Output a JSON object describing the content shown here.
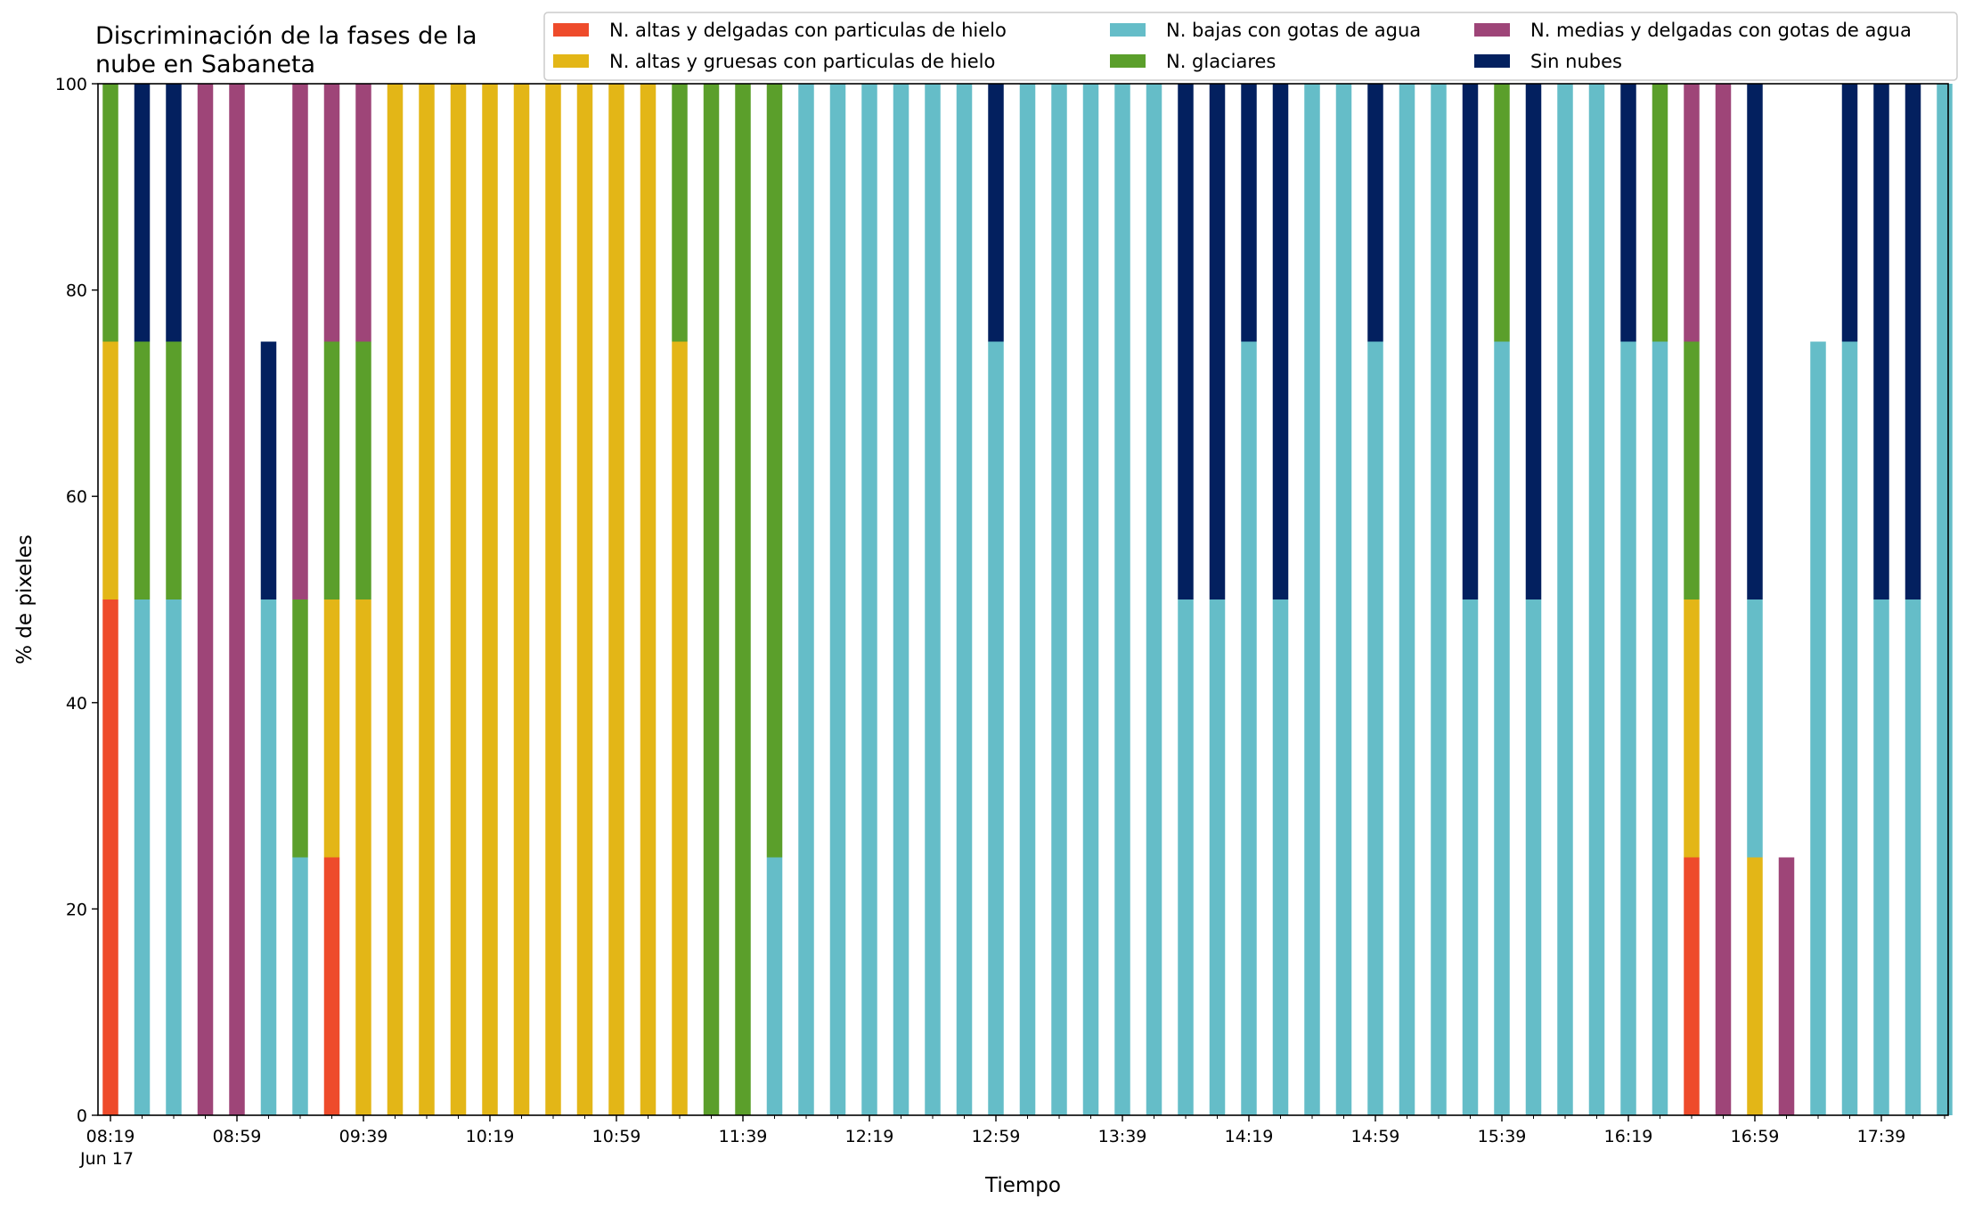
{
  "chart_data": {
    "type": "bar",
    "stacked": true,
    "title": "Discriminación de la fases de la nube en Sabaneta",
    "title_lines": [
      "Discriminación de la fases de la",
      "nube en Sabaneta"
    ],
    "xlabel": "Tiempo",
    "ylabel": "% de pixeles",
    "ylim": [
      0,
      100
    ],
    "yticks": [
      0,
      20,
      40,
      60,
      80,
      100
    ],
    "x_major_tick_labels": [
      "08:19",
      "08:59",
      "09:39",
      "10:19",
      "10:59",
      "11:39",
      "12:19",
      "12:59",
      "13:39",
      "14:19",
      "14:59",
      "15:39",
      "16:19",
      "16:59",
      "17:39"
    ],
    "x_sub_label": "Jun 17",
    "grid": false,
    "legend_position": "top-right",
    "legend_columns": 3,
    "series": [
      {
        "name": "N. altas y delgadas con particulas de hielo",
        "color": "#ee4b2b",
        "values": [
          50,
          0,
          0,
          0,
          0,
          0,
          0,
          25,
          0,
          0,
          0,
          0,
          0,
          0,
          0,
          0,
          0,
          0,
          0,
          0,
          0,
          0,
          0,
          0,
          0,
          0,
          0,
          0,
          0,
          0,
          0,
          0,
          0,
          0,
          0,
          0,
          0,
          0,
          0,
          0,
          0,
          0,
          0,
          0,
          0,
          0,
          0,
          0,
          0,
          0,
          25,
          0,
          0,
          0,
          0,
          0,
          0,
          0,
          0
        ]
      },
      {
        "name": "N. altas y gruesas con particulas de hielo",
        "color": "#e3b617",
        "values": [
          25,
          0,
          0,
          0,
          0,
          0,
          0,
          25,
          50,
          100,
          100,
          100,
          100,
          100,
          100,
          100,
          100,
          100,
          75,
          0,
          0,
          0,
          0,
          0,
          0,
          0,
          0,
          0,
          0,
          0,
          0,
          0,
          0,
          0,
          0,
          0,
          0,
          0,
          0,
          0,
          0,
          0,
          0,
          0,
          0,
          0,
          0,
          0,
          0,
          0,
          25,
          0,
          25,
          0,
          0,
          0,
          0,
          0,
          0
        ]
      },
      {
        "name": "N. bajas con gotas de agua",
        "color": "#65bdc8",
        "values": [
          0,
          50,
          50,
          0,
          0,
          50,
          25,
          0,
          0,
          0,
          0,
          0,
          0,
          0,
          0,
          0,
          0,
          0,
          0,
          0,
          0,
          25,
          100,
          100,
          100,
          100,
          100,
          100,
          75,
          100,
          100,
          100,
          100,
          100,
          50,
          50,
          75,
          50,
          100,
          100,
          75,
          100,
          100,
          50,
          75,
          50,
          100,
          100,
          75,
          75,
          0,
          0,
          25,
          0,
          75,
          75,
          50,
          50,
          100
        ]
      },
      {
        "name": "N. glaciares",
        "color": "#5b9f2b",
        "values": [
          25,
          25,
          25,
          0,
          0,
          0,
          25,
          25,
          25,
          0,
          0,
          0,
          0,
          0,
          0,
          0,
          0,
          0,
          25,
          100,
          100,
          75,
          0,
          0,
          0,
          0,
          0,
          0,
          0,
          0,
          0,
          0,
          0,
          0,
          0,
          0,
          0,
          0,
          0,
          0,
          0,
          0,
          0,
          0,
          25,
          0,
          0,
          0,
          0,
          25,
          25,
          0,
          0,
          0,
          0,
          0,
          0,
          0,
          0
        ]
      },
      {
        "name": "N. medias y delgadas con gotas de agua",
        "color": "#9e4578",
        "values": [
          0,
          0,
          0,
          100,
          100,
          0,
          50,
          25,
          25,
          0,
          0,
          0,
          0,
          0,
          0,
          0,
          0,
          0,
          0,
          0,
          0,
          0,
          0,
          0,
          0,
          0,
          0,
          0,
          0,
          0,
          0,
          0,
          0,
          0,
          0,
          0,
          0,
          0,
          0,
          0,
          0,
          0,
          0,
          0,
          0,
          0,
          0,
          0,
          0,
          0,
          25,
          100,
          0,
          25,
          0,
          0,
          0,
          0,
          0
        ]
      },
      {
        "name": "Sin nubes",
        "color": "#03205f",
        "values": [
          0,
          25,
          25,
          0,
          0,
          25,
          0,
          0,
          0,
          0,
          0,
          0,
          0,
          0,
          0,
          0,
          0,
          0,
          0,
          0,
          0,
          0,
          0,
          0,
          0,
          0,
          0,
          0,
          25,
          0,
          0,
          0,
          0,
          0,
          50,
          50,
          25,
          50,
          0,
          0,
          25,
          0,
          0,
          50,
          0,
          50,
          0,
          0,
          25,
          0,
          0,
          0,
          50,
          0,
          0,
          25,
          50,
          50,
          0
        ]
      }
    ]
  }
}
